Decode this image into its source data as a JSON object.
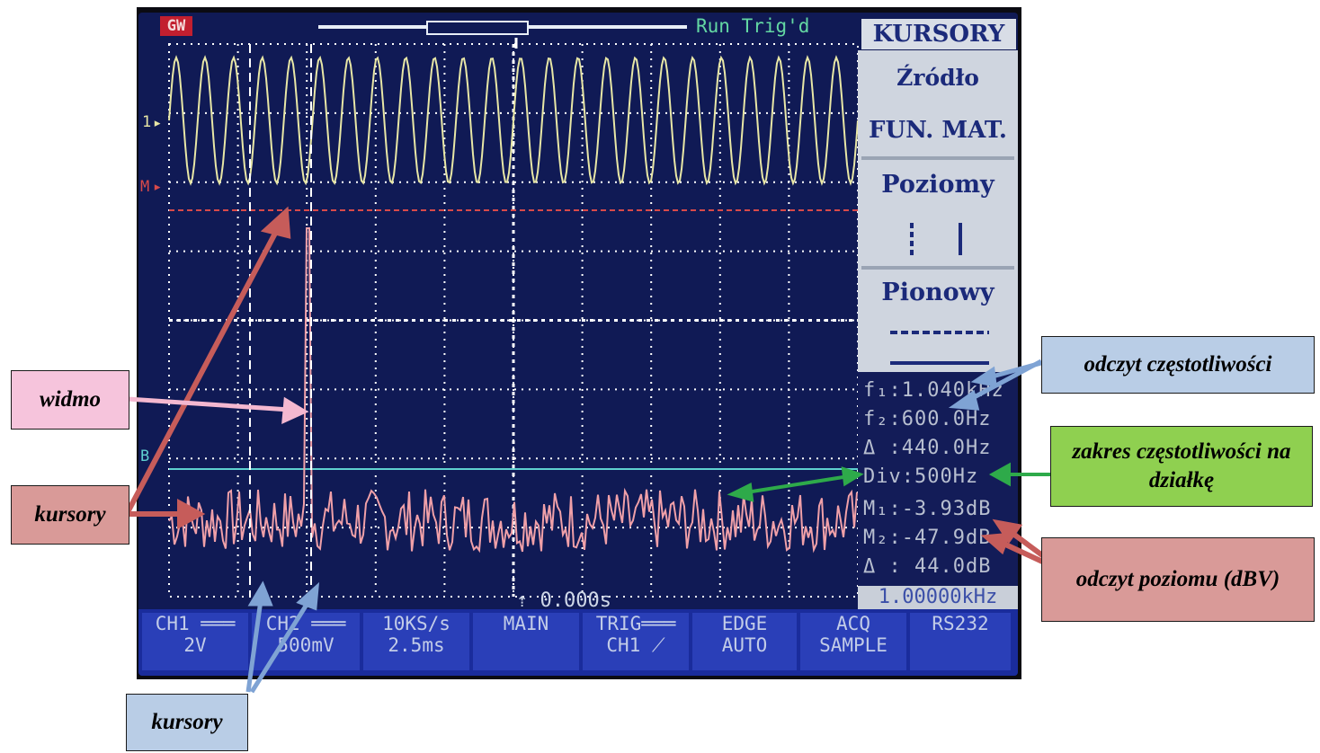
{
  "scope": {
    "brand": "GW",
    "status": "Run  Trig'd",
    "menu": {
      "title": "KURSORY",
      "source_label": "Źródło",
      "source_value": "FUN. MAT.",
      "horizontal_label": "Poziomy",
      "vertical_label": "Pionowy"
    },
    "channel_markers": {
      "ch1": "1",
      "math": "M",
      "b": "B"
    },
    "readouts": {
      "f1": "f₁:1.040kHz",
      "f2": "f₂:600.0Hz",
      "df": "Δ :440.0Hz",
      "div": "Div:500Hz",
      "m1": "M₁:-3.93dB",
      "m2": "M₂:-47.9dB",
      "dm": "Δ : 44.0dB",
      "center_freq": "1.00000kHz"
    },
    "time_offset": "0.000s",
    "bottom_bar": [
      {
        "line1": "CH1 ═══",
        "line2": "2V"
      },
      {
        "line1": "CH2 ═══",
        "line2": "500mV"
      },
      {
        "line1": "10KS/s",
        "line2": "2.5ms"
      },
      {
        "line1": "MAIN",
        "line2": ""
      },
      {
        "line1": "TRIG═══",
        "line2": "CH1 ⟋"
      },
      {
        "line1": "EDGE",
        "line2": "AUTO"
      },
      {
        "line1": "ACQ",
        "line2": "SAMPLE"
      },
      {
        "line1": "RS232",
        "line2": ""
      }
    ],
    "colors": {
      "screen": "#101a55",
      "ch1_trace": "#e8e7a6",
      "spectrum_trace": "#f0a0a8",
      "math_reference": "#d84a4a",
      "grid": "#ffffff"
    }
  },
  "annotations": {
    "widmo": "widmo",
    "kursory_left": "kursory",
    "kursory_bottom": "kursory",
    "freq_readout": "odczyt częstotliwości",
    "freq_range": "zakres częstotliwości na działkę",
    "level_readout": "odczyt poziomu (dBV)",
    "colors": {
      "pink": "#f6c4dc",
      "blue": "#b9cde6",
      "green": "#8fd050",
      "rose": "#d99a98"
    }
  }
}
